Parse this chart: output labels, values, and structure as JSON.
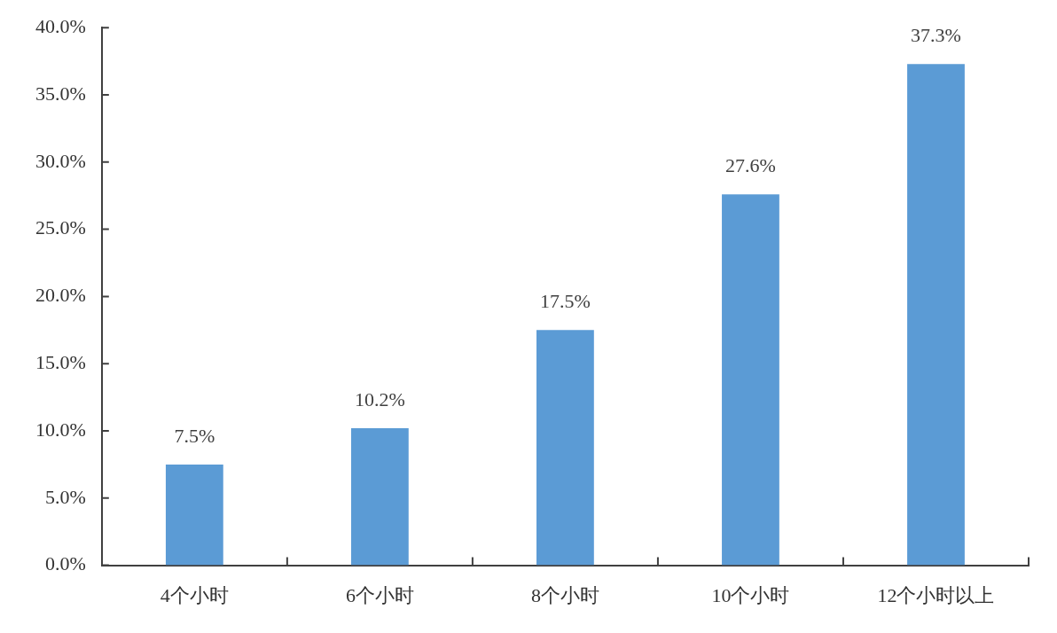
{
  "chart_data": {
    "type": "bar",
    "categories": [
      "4个小时",
      "6个小时",
      "8个小时",
      "10个小时",
      "12个小时以上"
    ],
    "values": [
      7.5,
      10.2,
      17.5,
      27.6,
      37.3
    ],
    "value_labels": [
      "7.5%",
      "10.2%",
      "17.5%",
      "27.6%",
      "37.3%"
    ],
    "color": "#5b9bd5",
    "ylim": [
      0,
      40
    ],
    "yticks": [
      {
        "value": 0,
        "label": "0.0%"
      },
      {
        "value": 5,
        "label": "5.0%"
      },
      {
        "value": 10,
        "label": "10.0%"
      },
      {
        "value": 15,
        "label": "15.0%"
      },
      {
        "value": 20,
        "label": "20.0%"
      },
      {
        "value": 25,
        "label": "25.0%"
      },
      {
        "value": 30,
        "label": "30.0%"
      },
      {
        "value": 35,
        "label": "35.0%"
      },
      {
        "value": 40,
        "label": "40.0%"
      }
    ]
  }
}
